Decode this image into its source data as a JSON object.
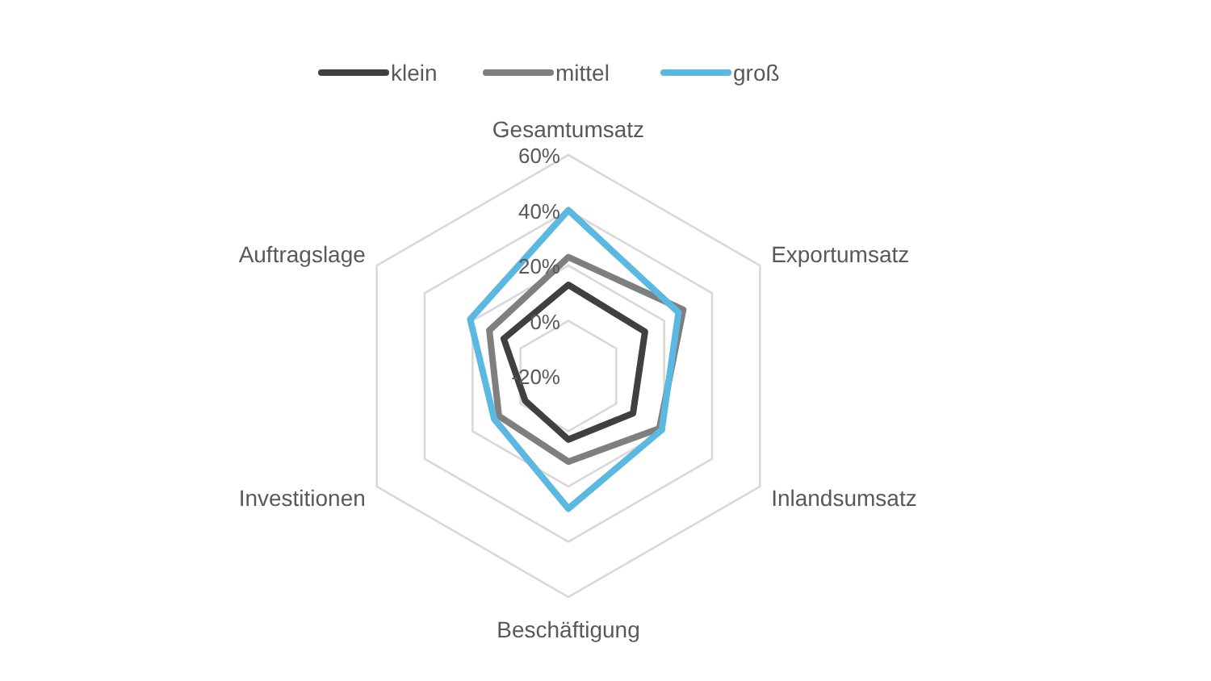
{
  "chart_data": {
    "type": "radar",
    "categories": [
      "Gesamtumsatz",
      "Exportumsatz",
      "Inlandsumsatz",
      "Beschäftigung",
      "Investitionen",
      "Auftragslage"
    ],
    "ylim": [
      -20,
      60
    ],
    "yticks": [
      {
        "value": -20,
        "label": "-20%"
      },
      {
        "value": 0,
        "label": "0%"
      },
      {
        "value": 20,
        "label": "20%"
      },
      {
        "value": 40,
        "label": "40%"
      },
      {
        "value": 60,
        "label": "60%"
      }
    ],
    "grid": true,
    "legend": "top",
    "series": [
      {
        "name": "klein",
        "color": "#404040",
        "values": [
          13,
          12,
          7,
          3,
          -2,
          7
        ]
      },
      {
        "name": "mittel",
        "color": "#7f7f7f",
        "values": [
          23,
          28,
          18,
          11,
          9,
          13
        ]
      },
      {
        "name": "groß",
        "color": "#5bb8e0",
        "values": [
          40,
          26,
          19,
          28,
          11,
          21
        ]
      }
    ]
  }
}
